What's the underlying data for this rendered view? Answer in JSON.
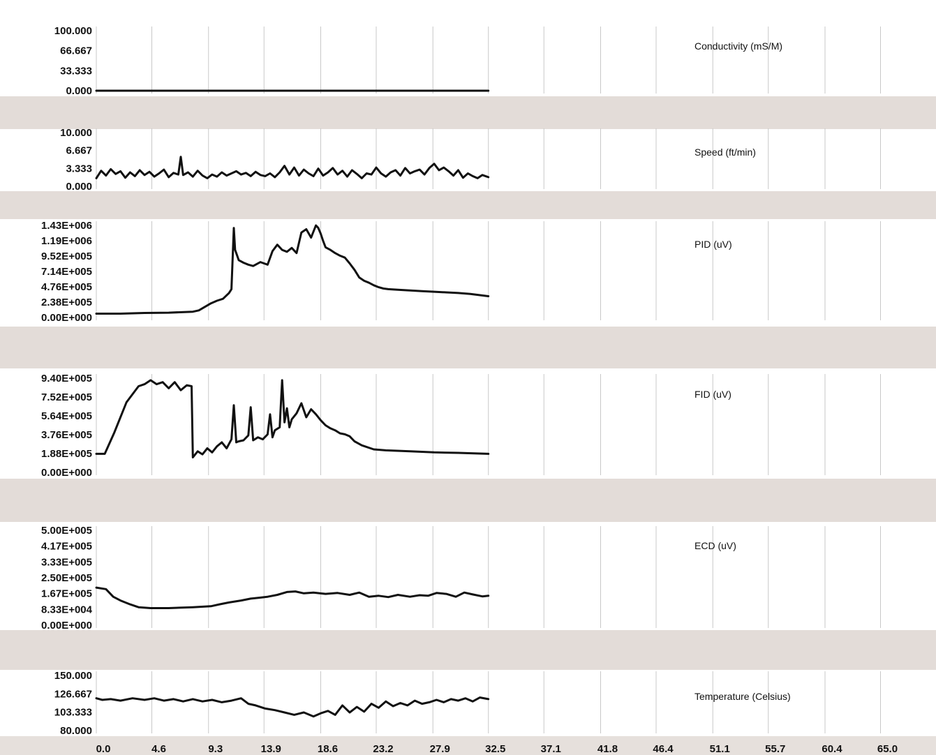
{
  "chart_data": {
    "type": "line",
    "x_ticks": [
      "0.0",
      "4.6",
      "9.3",
      "13.9",
      "18.6",
      "23.2",
      "27.9",
      "32.5",
      "37.1",
      "41.8",
      "46.4",
      "51.1",
      "55.7",
      "60.4",
      "65.0"
    ],
    "x_range": [
      0,
      69.6
    ],
    "grid": true,
    "panels": [
      {
        "name": "Conductivity (mS/M)",
        "y_ticks": [
          "100.000",
          "66.667",
          "33.333",
          "0.000"
        ],
        "ylim": [
          0,
          100
        ],
        "x": [
          0,
          32.5
        ],
        "values": [
          0,
          0
        ]
      },
      {
        "name": "Speed (ft/min)",
        "y_ticks": [
          "10.000",
          "6.667",
          "3.333",
          "0.000"
        ],
        "ylim": [
          0,
          10
        ],
        "x": [
          0,
          0.4,
          0.8,
          1.2,
          1.6,
          2.0,
          2.4,
          2.8,
          3.2,
          3.6,
          4.0,
          4.4,
          4.8,
          5.2,
          5.6,
          6.0,
          6.4,
          6.8,
          7.0,
          7.2,
          7.6,
          8.0,
          8.4,
          8.8,
          9.2,
          9.6,
          10.0,
          10.4,
          10.8,
          11.2,
          11.6,
          12.0,
          12.4,
          12.8,
          13.2,
          13.6,
          14.0,
          14.4,
          14.8,
          15.2,
          15.6,
          16.0,
          16.4,
          16.8,
          17.2,
          17.6,
          18.0,
          18.4,
          18.8,
          19.2,
          19.6,
          20.0,
          20.4,
          20.8,
          21.2,
          21.6,
          22.0,
          22.4,
          22.8,
          23.2,
          23.6,
          24.0,
          24.4,
          24.8,
          25.2,
          25.6,
          26.0,
          26.4,
          26.8,
          27.2,
          27.6,
          28.0,
          28.4,
          28.8,
          29.2,
          29.6,
          30.0,
          30.4,
          30.8,
          31.2,
          31.6,
          32.0,
          32.5
        ],
        "values": [
          1.5,
          2.9,
          2.0,
          3.2,
          2.3,
          2.8,
          1.6,
          2.6,
          1.9,
          3.0,
          2.1,
          2.7,
          1.8,
          2.4,
          3.1,
          1.7,
          2.5,
          2.2,
          5.5,
          2.1,
          2.6,
          1.8,
          2.9,
          2.0,
          1.5,
          2.2,
          1.8,
          2.6,
          2.0,
          2.4,
          2.8,
          2.2,
          2.5,
          1.9,
          2.7,
          2.1,
          1.9,
          2.4,
          1.7,
          2.6,
          3.8,
          2.2,
          3.5,
          2.0,
          3.1,
          2.4,
          1.9,
          3.3,
          2.0,
          2.6,
          3.4,
          2.2,
          2.9,
          1.8,
          3.0,
          2.3,
          1.5,
          2.4,
          2.2,
          3.5,
          2.4,
          1.8,
          2.6,
          3.0,
          2.0,
          3.4,
          2.4,
          2.8,
          3.1,
          2.2,
          3.4,
          4.2,
          3.0,
          3.5,
          2.8,
          2.0,
          3.0,
          1.6,
          2.4,
          1.9,
          1.5,
          2.1,
          1.7
        ]
      },
      {
        "name": "PID (uV)",
        "y_ticks": [
          "1.43E+006",
          "1.19E+006",
          "9.52E+005",
          "7.14E+005",
          "4.76E+005",
          "2.38E+005",
          "0.00E+000"
        ],
        "ylim": [
          0,
          1430000
        ],
        "x": [
          0,
          2,
          4,
          6,
          8,
          8.5,
          9.5,
          10,
          10.5,
          11,
          11.2,
          11.4,
          11.5,
          11.6,
          11.8,
          12.2,
          12.6,
          13.0,
          13.6,
          14.2,
          14.6,
          15.0,
          15.4,
          15.8,
          16.2,
          16.6,
          17.0,
          17.4,
          17.8,
          18.2,
          18.4,
          18.6,
          18.8,
          19.0,
          19.4,
          19.8,
          20.2,
          20.6,
          21.0,
          21.4,
          21.8,
          22.2,
          22.6,
          23.0,
          23.4,
          23.8,
          24.2,
          25,
          26,
          27,
          28,
          29,
          30,
          31,
          32.5
        ],
        "values": [
          60000,
          60000,
          70000,
          75000,
          90000,
          110000,
          220000,
          260000,
          290000,
          380000,
          440000,
          1390000,
          1050000,
          1000000,
          890000,
          850000,
          820000,
          800000,
          860000,
          820000,
          1030000,
          1130000,
          1050000,
          1020000,
          1080000,
          1000000,
          1320000,
          1370000,
          1240000,
          1430000,
          1390000,
          1300000,
          1190000,
          1090000,
          1050000,
          1000000,
          960000,
          930000,
          840000,
          740000,
          620000,
          570000,
          540000,
          500000,
          470000,
          450000,
          440000,
          430000,
          420000,
          410000,
          400000,
          390000,
          380000,
          365000,
          330000
        ]
      },
      {
        "name": "FID (uV)",
        "y_ticks": [
          "9.40E+005",
          "7.52E+005",
          "5.64E+005",
          "3.76E+005",
          "1.88E+005",
          "0.00E+000"
        ],
        "ylim": [
          0,
          940000
        ],
        "x": [
          0,
          0.7,
          1.5,
          2.5,
          3.5,
          4.0,
          4.5,
          5.0,
          5.5,
          6.0,
          6.5,
          7.0,
          7.5,
          7.9,
          8.0,
          8.4,
          8.8,
          9.2,
          9.6,
          10.0,
          10.4,
          10.8,
          11.2,
          11.4,
          11.6,
          11.8,
          12.2,
          12.6,
          12.8,
          13.0,
          13.4,
          13.8,
          14.2,
          14.4,
          14.6,
          14.8,
          15.2,
          15.4,
          15.6,
          15.8,
          16.0,
          16.2,
          16.6,
          17.0,
          17.4,
          17.8,
          18.2,
          18.6,
          19.0,
          19.4,
          19.8,
          20.2,
          20.6,
          21.0,
          21.4,
          22,
          23,
          24,
          26,
          28,
          30,
          32.5
        ],
        "values": [
          185000,
          185000,
          400000,
          700000,
          860000,
          880000,
          920000,
          880000,
          900000,
          840000,
          900000,
          820000,
          870000,
          860000,
          150000,
          210000,
          180000,
          240000,
          200000,
          260000,
          300000,
          240000,
          330000,
          670000,
          300000,
          310000,
          320000,
          370000,
          650000,
          320000,
          350000,
          330000,
          380000,
          580000,
          350000,
          420000,
          450000,
          920000,
          500000,
          640000,
          450000,
          530000,
          590000,
          690000,
          550000,
          630000,
          580000,
          520000,
          470000,
          440000,
          420000,
          390000,
          380000,
          360000,
          310000,
          270000,
          230000,
          220000,
          210000,
          200000,
          195000,
          185000
        ]
      },
      {
        "name": "ECD (uV)",
        "y_ticks": [
          "5.00E+005",
          "4.17E+005",
          "3.33E+005",
          "2.50E+005",
          "1.67E+005",
          "8.33E+004",
          "0.00E+000"
        ],
        "ylim": [
          0,
          500000
        ],
        "x": [
          0,
          0.8,
          1.4,
          2.0,
          2.8,
          3.5,
          4.5,
          6,
          8,
          9.5,
          10.2,
          11,
          12,
          12.8,
          13.5,
          14.2,
          15.0,
          15.8,
          16.5,
          17.2,
          18,
          19,
          20,
          21,
          21.8,
          22.6,
          23.4,
          24.2,
          25,
          26,
          26.8,
          27.5,
          28.2,
          29,
          29.8,
          30.5,
          31.2,
          32,
          32.5
        ],
        "values": [
          198000,
          190000,
          150000,
          130000,
          110000,
          95000,
          90000,
          90000,
          95000,
          100000,
          110000,
          120000,
          130000,
          140000,
          145000,
          150000,
          160000,
          175000,
          178000,
          168000,
          172000,
          165000,
          170000,
          160000,
          172000,
          150000,
          155000,
          148000,
          160000,
          150000,
          158000,
          155000,
          170000,
          165000,
          150000,
          172000,
          162000,
          152000,
          155000
        ]
      },
      {
        "name": "Temperature (Celsius)",
        "y_ticks": [
          "150.000",
          "126.667",
          "103.333",
          "80.000"
        ],
        "ylim": [
          80,
          150
        ],
        "x": [
          0,
          0.5,
          1.2,
          2,
          3,
          4,
          4.8,
          5.6,
          6.4,
          7.2,
          8,
          8.8,
          9.6,
          10.4,
          11.2,
          12,
          12.6,
          13.2,
          14,
          14.8,
          15.6,
          16.4,
          17.2,
          18,
          18.6,
          19.2,
          19.8,
          20.4,
          21,
          21.6,
          22.2,
          22.8,
          23.4,
          24,
          24.6,
          25.2,
          25.8,
          26.4,
          27,
          27.6,
          28.2,
          28.8,
          29.4,
          30,
          30.6,
          31.2,
          31.8,
          32.5
        ],
        "values": [
          121,
          119,
          120,
          118,
          121,
          119,
          121,
          118,
          120,
          117,
          120,
          117,
          119,
          116,
          118,
          121,
          114,
          112,
          108,
          106,
          103,
          100,
          103,
          98,
          102,
          105,
          100,
          112,
          103,
          110,
          104,
          114,
          109,
          117,
          111,
          115,
          112,
          118,
          114,
          116,
          119,
          116,
          120,
          118,
          121,
          117,
          122,
          120
        ]
      }
    ]
  }
}
